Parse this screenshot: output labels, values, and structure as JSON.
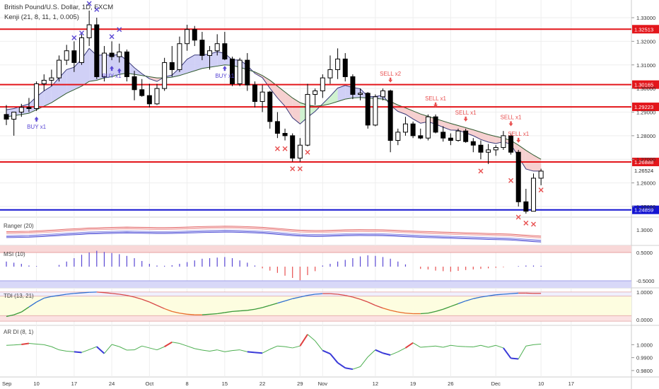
{
  "header": {
    "symbol": "British Pound/U.S. Dollar, 1D, FXCM",
    "indicator": "Kenji (21, 8, 11, 1, 0.005)"
  },
  "colors": {
    "bull": "#ffffff",
    "bear": "#000000",
    "resistance": "#e3161b",
    "support": "#1414d2",
    "bull_cloud": "#c8c8f5",
    "bear_cloud": "#f5c8c8",
    "green_cloud": "#c8f0c8",
    "buy_marker": "#5a48d4",
    "sell_marker": "#e85050",
    "grid": "#eeeeee"
  },
  "chart_data": [
    {
      "type": "candlestick",
      "panel": "main",
      "title": "British Pound/U.S. Dollar, 1D, FXCM",
      "ylim": [
        1.2455,
        1.3375
      ],
      "y_ticks": [
        1.33,
        1.32,
        1.31,
        1.3,
        1.29,
        1.28,
        1.27,
        1.26,
        1.25
      ],
      "y_tick_labels": [
        "1.33000",
        "1.32000",
        "1.31000",
        "1.30000",
        "1.29000",
        "1.28000",
        "1.27000",
        "1.26000",
        "1.25000"
      ],
      "x_ticks": [
        {
          "index": 4,
          "label": "10"
        },
        {
          "index": 9,
          "label": "17"
        },
        {
          "index": 14,
          "label": "24"
        },
        {
          "index": 19,
          "label": "Oct"
        },
        {
          "index": 24,
          "label": "8"
        },
        {
          "index": 29,
          "label": "15"
        },
        {
          "index": 34,
          "label": "22"
        },
        {
          "index": 39,
          "label": "29"
        },
        {
          "index": 42,
          "label": "Nov"
        },
        {
          "index": 49,
          "label": "12"
        },
        {
          "index": 54,
          "label": "19"
        },
        {
          "index": 59,
          "label": "26"
        },
        {
          "index": 65,
          "label": "Dec"
        },
        {
          "index": 71,
          "label": "10"
        },
        {
          "index": 75,
          "label": "17"
        }
      ],
      "first_tick_label": "Sep",
      "candles": [
        {
          "o": 1.289,
          "h": 1.293,
          "l": 1.2845,
          "c": 1.287
        },
        {
          "o": 1.287,
          "h": 1.29,
          "l": 1.28,
          "c": 1.29
        },
        {
          "o": 1.29,
          "h": 1.2935,
          "l": 1.288,
          "c": 1.292
        },
        {
          "o": 1.292,
          "h": 1.296,
          "l": 1.29,
          "c": 1.2915
        },
        {
          "o": 1.2915,
          "h": 1.303,
          "l": 1.2905,
          "c": 1.302
        },
        {
          "o": 1.302,
          "h": 1.306,
          "l": 1.299,
          "c": 1.3035
        },
        {
          "o": 1.3035,
          "h": 1.308,
          "l": 1.301,
          "c": 1.3045
        },
        {
          "o": 1.3045,
          "h": 1.314,
          "l": 1.303,
          "c": 1.312
        },
        {
          "o": 1.312,
          "h": 1.3185,
          "l": 1.31,
          "c": 1.316
        },
        {
          "o": 1.316,
          "h": 1.32,
          "l": 1.307,
          "c": 1.311
        },
        {
          "o": 1.311,
          "h": 1.323,
          "l": 1.31,
          "c": 1.3215
        },
        {
          "o": 1.3215,
          "h": 1.333,
          "l": 1.318,
          "c": 1.327
        },
        {
          "o": 1.327,
          "h": 1.33,
          "l": 1.304,
          "c": 1.305
        },
        {
          "o": 1.305,
          "h": 1.318,
          "l": 1.303,
          "c": 1.315
        },
        {
          "o": 1.315,
          "h": 1.32,
          "l": 1.312,
          "c": 1.3135
        },
        {
          "o": 1.3135,
          "h": 1.319,
          "l": 1.311,
          "c": 1.3155
        },
        {
          "o": 1.3155,
          "h": 1.3165,
          "l": 1.303,
          "c": 1.305
        },
        {
          "o": 1.305,
          "h": 1.3075,
          "l": 1.295,
          "c": 1.2995
        },
        {
          "o": 1.2995,
          "h": 1.304,
          "l": 1.2965,
          "c": 1.297
        },
        {
          "o": 1.297,
          "h": 1.302,
          "l": 1.292,
          "c": 1.2935
        },
        {
          "o": 1.2935,
          "h": 1.302,
          "l": 1.293,
          "c": 1.3
        },
        {
          "o": 1.3,
          "h": 1.313,
          "l": 1.299,
          "c": 1.311
        },
        {
          "o": 1.311,
          "h": 1.318,
          "l": 1.305,
          "c": 1.308
        },
        {
          "o": 1.308,
          "h": 1.322,
          "l": 1.307,
          "c": 1.319
        },
        {
          "o": 1.319,
          "h": 1.327,
          "l": 1.316,
          "c": 1.325
        },
        {
          "o": 1.325,
          "h": 1.3265,
          "l": 1.318,
          "c": 1.3205
        },
        {
          "o": 1.3205,
          "h": 1.324,
          "l": 1.312,
          "c": 1.314
        },
        {
          "o": 1.314,
          "h": 1.318,
          "l": 1.308,
          "c": 1.316
        },
        {
          "o": 1.316,
          "h": 1.323,
          "l": 1.314,
          "c": 1.319
        },
        {
          "o": 1.319,
          "h": 1.324,
          "l": 1.312,
          "c": 1.3125
        },
        {
          "o": 1.3125,
          "h": 1.3135,
          "l": 1.301,
          "c": 1.302
        },
        {
          "o": 1.302,
          "h": 1.313,
          "l": 1.301,
          "c": 1.312
        },
        {
          "o": 1.312,
          "h": 1.315,
          "l": 1.299,
          "c": 1.3015
        },
        {
          "o": 1.3015,
          "h": 1.303,
          "l": 1.292,
          "c": 1.2945
        },
        {
          "o": 1.2945,
          "h": 1.3015,
          "l": 1.29,
          "c": 1.2985
        },
        {
          "o": 1.2985,
          "h": 1.299,
          "l": 1.283,
          "c": 1.286
        },
        {
          "o": 1.286,
          "h": 1.29,
          "l": 1.279,
          "c": 1.281
        },
        {
          "o": 1.281,
          "h": 1.283,
          "l": 1.278,
          "c": 1.28
        },
        {
          "o": 1.28,
          "h": 1.281,
          "l": 1.269,
          "c": 1.2705
        },
        {
          "o": 1.2705,
          "h": 1.279,
          "l": 1.269,
          "c": 1.276
        },
        {
          "o": 1.276,
          "h": 1.302,
          "l": 1.2755,
          "c": 1.2975
        },
        {
          "o": 1.2975,
          "h": 1.3,
          "l": 1.293,
          "c": 1.299
        },
        {
          "o": 1.299,
          "h": 1.306,
          "l": 1.296,
          "c": 1.3045
        },
        {
          "o": 1.3045,
          "h": 1.314,
          "l": 1.302,
          "c": 1.308
        },
        {
          "o": 1.308,
          "h": 1.317,
          "l": 1.304,
          "c": 1.3125
        },
        {
          "o": 1.3125,
          "h": 1.315,
          "l": 1.303,
          "c": 1.305
        },
        {
          "o": 1.305,
          "h": 1.306,
          "l": 1.2955,
          "c": 1.2975
        },
        {
          "o": 1.2975,
          "h": 1.3,
          "l": 1.295,
          "c": 1.298
        },
        {
          "o": 1.298,
          "h": 1.2985,
          "l": 1.283,
          "c": 1.2845
        },
        {
          "o": 1.2845,
          "h": 1.2975,
          "l": 1.284,
          "c": 1.2965
        },
        {
          "o": 1.2965,
          "h": 1.3,
          "l": 1.295,
          "c": 1.299
        },
        {
          "o": 1.299,
          "h": 1.2995,
          "l": 1.273,
          "c": 1.278
        },
        {
          "o": 1.278,
          "h": 1.283,
          "l": 1.276,
          "c": 1.2815
        },
        {
          "o": 1.2815,
          "h": 1.288,
          "l": 1.28,
          "c": 1.285
        },
        {
          "o": 1.285,
          "h": 1.286,
          "l": 1.279,
          "c": 1.28
        },
        {
          "o": 1.28,
          "h": 1.283,
          "l": 1.2785,
          "c": 1.279
        },
        {
          "o": 1.279,
          "h": 1.289,
          "l": 1.278,
          "c": 1.288
        },
        {
          "o": 1.288,
          "h": 1.289,
          "l": 1.281,
          "c": 1.2815
        },
        {
          "o": 1.2815,
          "h": 1.284,
          "l": 1.2775,
          "c": 1.279
        },
        {
          "o": 1.279,
          "h": 1.281,
          "l": 1.276,
          "c": 1.278
        },
        {
          "o": 1.278,
          "h": 1.283,
          "l": 1.2775,
          "c": 1.282
        },
        {
          "o": 1.282,
          "h": 1.283,
          "l": 1.277,
          "c": 1.2775
        },
        {
          "o": 1.2775,
          "h": 1.279,
          "l": 1.273,
          "c": 1.276
        },
        {
          "o": 1.276,
          "h": 1.278,
          "l": 1.27,
          "c": 1.273
        },
        {
          "o": 1.273,
          "h": 1.2765,
          "l": 1.268,
          "c": 1.274
        },
        {
          "o": 1.274,
          "h": 1.276,
          "l": 1.2715,
          "c": 1.275
        },
        {
          "o": 1.275,
          "h": 1.282,
          "l": 1.274,
          "c": 1.28
        },
        {
          "o": 1.28,
          "h": 1.281,
          "l": 1.272,
          "c": 1.273
        },
        {
          "o": 1.273,
          "h": 1.274,
          "l": 1.25,
          "c": 1.252
        },
        {
          "o": 1.252,
          "h": 1.2575,
          "l": 1.247,
          "c": 1.248
        },
        {
          "o": 1.248,
          "h": 1.264,
          "l": 1.248,
          "c": 1.262
        },
        {
          "o": 1.262,
          "h": 1.266,
          "l": 1.259,
          "c": 1.265
        }
      ],
      "cloud_fast": [
        1.291,
        1.2915,
        1.2925,
        1.2935,
        1.2965,
        1.299,
        1.301,
        1.3045,
        1.308,
        1.309,
        1.3125,
        1.317,
        1.314,
        1.3143,
        1.314,
        1.3144,
        1.3119,
        1.3088,
        1.3063,
        1.3041,
        1.303,
        1.3049,
        1.3057,
        1.3087,
        1.3124,
        1.3142,
        1.3142,
        1.3146,
        1.3156,
        1.3149,
        1.3121,
        1.3121,
        1.3097,
        1.3064,
        1.3046,
        1.3001,
        1.296,
        1.2925,
        1.2876,
        1.285,
        1.2878,
        1.2903,
        1.2935,
        1.2967,
        1.3002,
        1.3013,
        1.3004,
        1.2999,
        1.2966,
        1.2966,
        1.2972,
        1.2929,
        1.2903,
        1.2891,
        1.2871,
        1.2853,
        1.2859,
        1.2849,
        1.2836,
        1.2824,
        1.2823,
        1.2812,
        1.28,
        1.2784,
        1.2773,
        1.2767,
        1.2774,
        1.2764,
        1.271,
        1.2659,
        1.265,
        1.265
      ],
      "cloud_slow": [
        1.288,
        1.2885,
        1.289,
        1.2895,
        1.291,
        1.2925,
        1.294,
        1.296,
        1.298,
        1.2995,
        1.301,
        1.303,
        1.3035,
        1.3045,
        1.305,
        1.306,
        1.3065,
        1.306,
        1.3055,
        1.305,
        1.3045,
        1.3045,
        1.3048,
        1.3055,
        1.3065,
        1.3075,
        1.3085,
        1.309,
        1.3095,
        1.31,
        1.3098,
        1.309,
        1.308,
        1.307,
        1.3055,
        1.3035,
        1.301,
        1.2985,
        1.296,
        1.294,
        1.293,
        1.2925,
        1.2928,
        1.2935,
        1.2945,
        1.2955,
        1.296,
        1.2962,
        1.296,
        1.2958,
        1.2955,
        1.2945,
        1.293,
        1.2918,
        1.2905,
        1.2892,
        1.2882,
        1.2872,
        1.2862,
        1.2852,
        1.2843,
        1.2834,
        1.2825,
        1.2815,
        1.2805,
        1.2797,
        1.279,
        1.278,
        1.276,
        1.2738,
        1.2718,
        1.27
      ],
      "levels": [
        {
          "value": 1.32513,
          "label": "1.32513",
          "kind": "resistance"
        },
        {
          "value": 1.30165,
          "label": "1.30165",
          "kind": "resistance"
        },
        {
          "value": 1.29223,
          "label": "1.29223",
          "kind": "resistance"
        },
        {
          "value": 1.26888,
          "label": "1.26888",
          "kind": "resistance"
        },
        {
          "value": 1.24859,
          "label": "1.24859",
          "kind": "support"
        }
      ],
      "last_price": {
        "value": 1.26524,
        "label": "1.26524"
      },
      "signals": [
        {
          "index": 4,
          "type": "buy",
          "label": "BUY x1"
        },
        {
          "index": 14,
          "type": "buy",
          "label": "BUY x1"
        },
        {
          "index": 15,
          "type": "buy",
          "label": ""
        },
        {
          "index": 29,
          "type": "buy",
          "label": "BUY x1"
        },
        {
          "index": 51,
          "type": "sell",
          "label": "SELL x2"
        },
        {
          "index": 57,
          "type": "sell",
          "label": "SELL x1"
        },
        {
          "index": 61,
          "type": "sell",
          "label": "SELL x1"
        },
        {
          "index": 67,
          "type": "sell",
          "label": "SELL x1"
        },
        {
          "index": 68,
          "type": "sell",
          "label": "SELL x1"
        }
      ],
      "cross_marks": [
        {
          "index": 9,
          "price": 1.3215,
          "side": "bull"
        },
        {
          "index": 10,
          "price": 1.3235,
          "side": "bull"
        },
        {
          "index": 11,
          "price": 1.336,
          "side": "bull"
        },
        {
          "index": 12,
          "price": 1.3335,
          "side": "bull"
        },
        {
          "index": 14,
          "price": 1.322,
          "side": "bull"
        },
        {
          "index": 15,
          "price": 1.325,
          "side": "bull"
        },
        {
          "index": 36,
          "price": 1.2745,
          "side": "bear"
        },
        {
          "index": 37,
          "price": 1.2745,
          "side": "bear"
        },
        {
          "index": 38,
          "price": 1.266,
          "side": "bear"
        },
        {
          "index": 39,
          "price": 1.266,
          "side": "bear"
        },
        {
          "index": 40,
          "price": 1.273,
          "side": "bear"
        },
        {
          "index": 63,
          "price": 1.265,
          "side": "bear"
        },
        {
          "index": 67,
          "price": 1.261,
          "side": "bear"
        },
        {
          "index": 68,
          "price": 1.2455,
          "side": "bear"
        },
        {
          "index": 69,
          "price": 1.243,
          "side": "bear"
        },
        {
          "index": 70,
          "price": 1.2425,
          "side": "bear"
        },
        {
          "index": 71,
          "price": 1.257,
          "side": "bear"
        }
      ]
    },
    {
      "type": "line",
      "panel": "ranger",
      "title": "Ranger (20)",
      "y_ticks": [
        1.3
      ],
      "y_tick_labels": [
        "1.3000"
      ]
    },
    {
      "type": "bar",
      "panel": "msi",
      "title": "MSI (10)",
      "ylim": [
        -0.75,
        0.75
      ],
      "y_ticks": [
        0.5,
        -0.5
      ],
      "y_tick_labels": [
        "0.5000",
        "-0.5000"
      ],
      "values": [
        0.18,
        0.14,
        0.1,
        0.04,
        0.02,
        0.0,
        0.0,
        0.06,
        0.18,
        0.3,
        0.42,
        0.5,
        0.56,
        0.52,
        0.48,
        0.44,
        0.38,
        0.3,
        0.2,
        0.1,
        0.04,
        0.03,
        0.05,
        0.1,
        0.16,
        0.22,
        0.28,
        0.3,
        0.32,
        0.34,
        0.3,
        0.22,
        0.14,
        0.04,
        -0.06,
        -0.14,
        -0.22,
        -0.32,
        -0.4,
        -0.48,
        -0.3,
        -0.16,
        0.04,
        0.1,
        0.18,
        0.24,
        0.3,
        0.36,
        0.4,
        0.38,
        0.34,
        0.28,
        0.18,
        0.08,
        0.0,
        -0.08,
        -0.1,
        -0.14,
        -0.16,
        -0.18,
        -0.15,
        -0.12,
        -0.1,
        -0.08,
        -0.06,
        -0.04,
        -0.02,
        0.0,
        0.02,
        0.04,
        0.04,
        0.03
      ]
    },
    {
      "type": "line",
      "panel": "tdi",
      "title": "TDI (13, 21)",
      "ylim": [
        -0.2,
        1.15
      ],
      "y_ticks": [
        1.0,
        0.0
      ],
      "y_tick_labels": [
        "1.0000",
        "0.0000"
      ],
      "values": [
        0.12,
        0.18,
        0.28,
        0.46,
        0.64,
        0.78,
        0.84,
        0.88,
        0.92,
        0.95,
        0.97,
        0.99,
        1.0,
        0.98,
        0.95,
        0.92,
        0.88,
        0.82,
        0.74,
        0.64,
        0.52,
        0.4,
        0.3,
        0.24,
        0.2,
        0.18,
        0.18,
        0.2,
        0.22,
        0.26,
        0.3,
        0.32,
        0.34,
        0.38,
        0.44,
        0.52,
        0.6,
        0.68,
        0.76,
        0.82,
        0.88,
        0.92,
        0.94,
        0.94,
        0.92,
        0.88,
        0.82,
        0.74,
        0.64,
        0.52,
        0.42,
        0.34,
        0.28,
        0.24,
        0.22,
        0.22,
        0.24,
        0.3,
        0.38,
        0.48,
        0.58,
        0.68,
        0.76,
        0.82,
        0.86,
        0.9,
        0.92,
        0.94,
        0.96,
        0.96,
        0.95,
        0.95
      ]
    },
    {
      "type": "line",
      "panel": "ardi",
      "title": "AR DI (8, 1)",
      "ylim": [
        0.975,
        1.015
      ],
      "y_ticks": [
        1.0,
        0.99,
        0.98
      ],
      "y_tick_labels": [
        "1.0000",
        "0.9900",
        "0.9800"
      ],
      "values": [
        0.9995,
        0.9998,
        1.0002,
        1.001,
        1.0005,
        1.0,
        0.9985,
        0.996,
        0.995,
        0.9945,
        0.994,
        0.9962,
        0.9985,
        0.9932,
        1.0002,
        0.9985,
        0.9958,
        0.996,
        0.999,
        0.9975,
        0.996,
        0.9985,
        1.002,
        1.001,
        0.999,
        0.997,
        0.9958,
        0.995,
        0.996,
        0.9945,
        0.9955,
        0.996,
        0.9945,
        0.994,
        0.9935,
        0.9965,
        0.999,
        0.9985,
        0.9975,
        0.999,
        1.008,
        1.003,
        0.9955,
        0.993,
        0.986,
        0.982,
        0.981,
        0.983,
        0.9905,
        0.996,
        0.9935,
        0.992,
        0.9945,
        0.9975,
        1.0015,
        0.998,
        0.9985,
        0.999,
        0.998,
        0.9995,
        0.9988,
        0.9985,
        0.9983,
        0.9995,
        0.998,
        0.9995,
        0.9975,
        0.9895,
        0.989,
        0.999,
        1.0,
        1.0005
      ]
    }
  ]
}
